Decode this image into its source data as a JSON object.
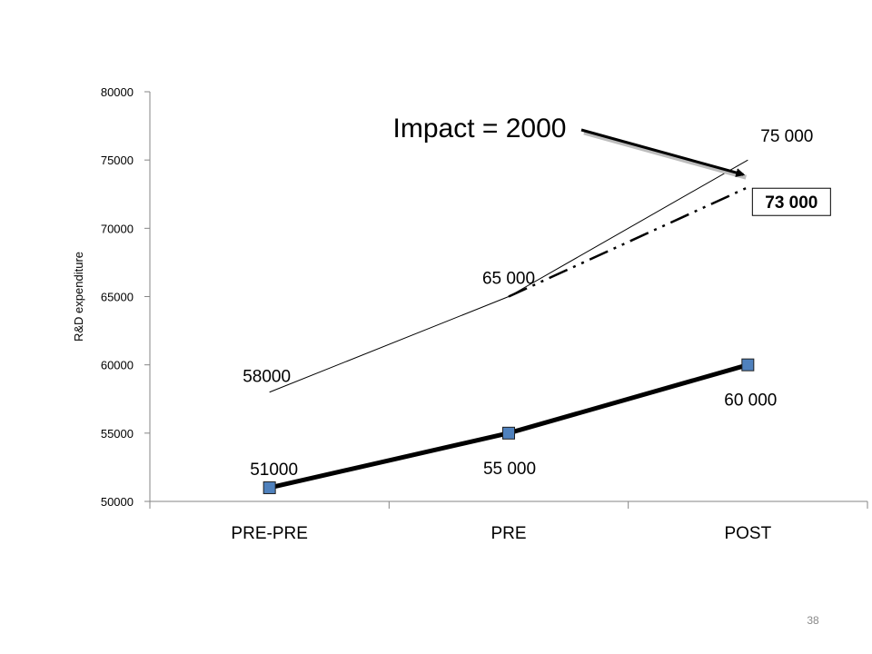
{
  "chart_data": {
    "type": "line",
    "categories": [
      "PRE-PRE",
      "PRE",
      "POST"
    ],
    "ylabel": "R&D expenditure",
    "xlabel": "",
    "title": "",
    "ylim": [
      50000,
      80000
    ],
    "yticks": [
      50000,
      55000,
      60000,
      65000,
      70000,
      75000,
      80000
    ],
    "series": [
      {
        "values": [
          58000,
          65000,
          75000
        ],
        "style": "thin-solid",
        "markers": false
      },
      {
        "values": [
          51000,
          55000,
          60000
        ],
        "style": "thick-solid",
        "markers": true,
        "marker_color": "#4f81bd"
      },
      {
        "values": [
          null,
          65000,
          73000
        ],
        "style": "dash-dot",
        "markers": false
      }
    ],
    "data_labels": [
      {
        "text": "58000",
        "x": "PRE-PRE",
        "y": 58000
      },
      {
        "text": "65 000",
        "x": "PRE",
        "y": 65000
      },
      {
        "text": "75 000",
        "x": "POST",
        "y": 75000
      },
      {
        "text": "51000",
        "x": "PRE-PRE",
        "y": 51000
      },
      {
        "text": "55 000",
        "x": "PRE",
        "y": 55000
      },
      {
        "text": "60 000",
        "x": "POST",
        "y": 60000
      },
      {
        "text": "73 000",
        "x": "POST",
        "y": 73000,
        "boxed": true,
        "bold": true
      }
    ],
    "annotation": {
      "text": "Impact = 2000",
      "points_to": {
        "x": "POST",
        "y": 74000
      }
    },
    "grid": false,
    "legend": "none"
  },
  "page_number": "38",
  "colors": {
    "marker": "#4f81bd",
    "axis": "#868686",
    "page_number": "#8a8a8a"
  }
}
